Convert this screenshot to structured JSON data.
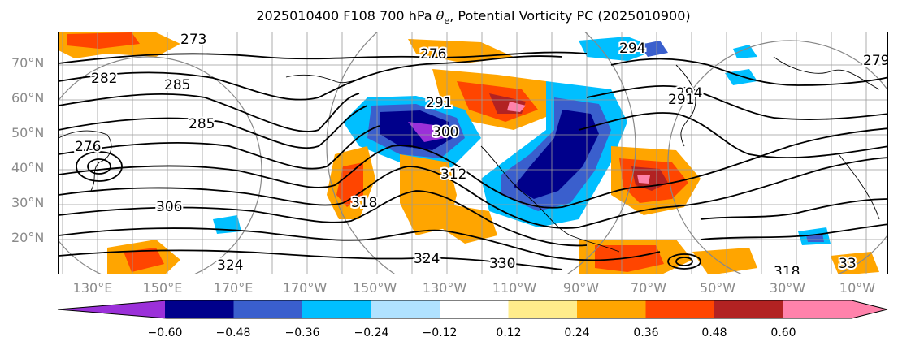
{
  "title": "2025010400 F108 700 hPa θe, Potential Vorticity PC (2025010900)",
  "title_parts": {
    "prefix": "2025010400 F108 700 hPa ",
    "theta": "θ",
    "sub": "e",
    "suffix": ", Potential Vorticity PC (2025010900)"
  },
  "lat_labels": [
    "70°N",
    "60°N",
    "50°N",
    "40°N",
    "30°N",
    "20°N"
  ],
  "lon_labels": [
    "130°E",
    "150°E",
    "170°E",
    "170°W",
    "150°W",
    "130°W",
    "110°W",
    "90°W",
    "70°W",
    "50°W",
    "30°W",
    "10°W"
  ],
  "contour_labels": [
    "273",
    "276",
    "282",
    "285",
    "285",
    "276",
    "291",
    "294",
    "306",
    "300",
    "312",
    "318",
    "324",
    "324",
    "330",
    "294",
    "291",
    "279",
    "318",
    "33"
  ],
  "colorbar": {
    "ticks": [
      "−0.60",
      "−0.48",
      "−0.36",
      "−0.24",
      "−0.12",
      "0.12",
      "0.24",
      "0.36",
      "0.48",
      "0.60"
    ],
    "colors": [
      "#9b30d9",
      "#00008b",
      "#3a5fcd",
      "#00bfff",
      "#b0e2ff",
      "#ffffff",
      "#ffec8b",
      "#ffa500",
      "#ff4500",
      "#b22222",
      "#ff82ab",
      "#ff82ab"
    ]
  },
  "colors": {
    "contour": "#000000",
    "grid": "#9a9a9a",
    "label": "#8a8a8a"
  }
}
